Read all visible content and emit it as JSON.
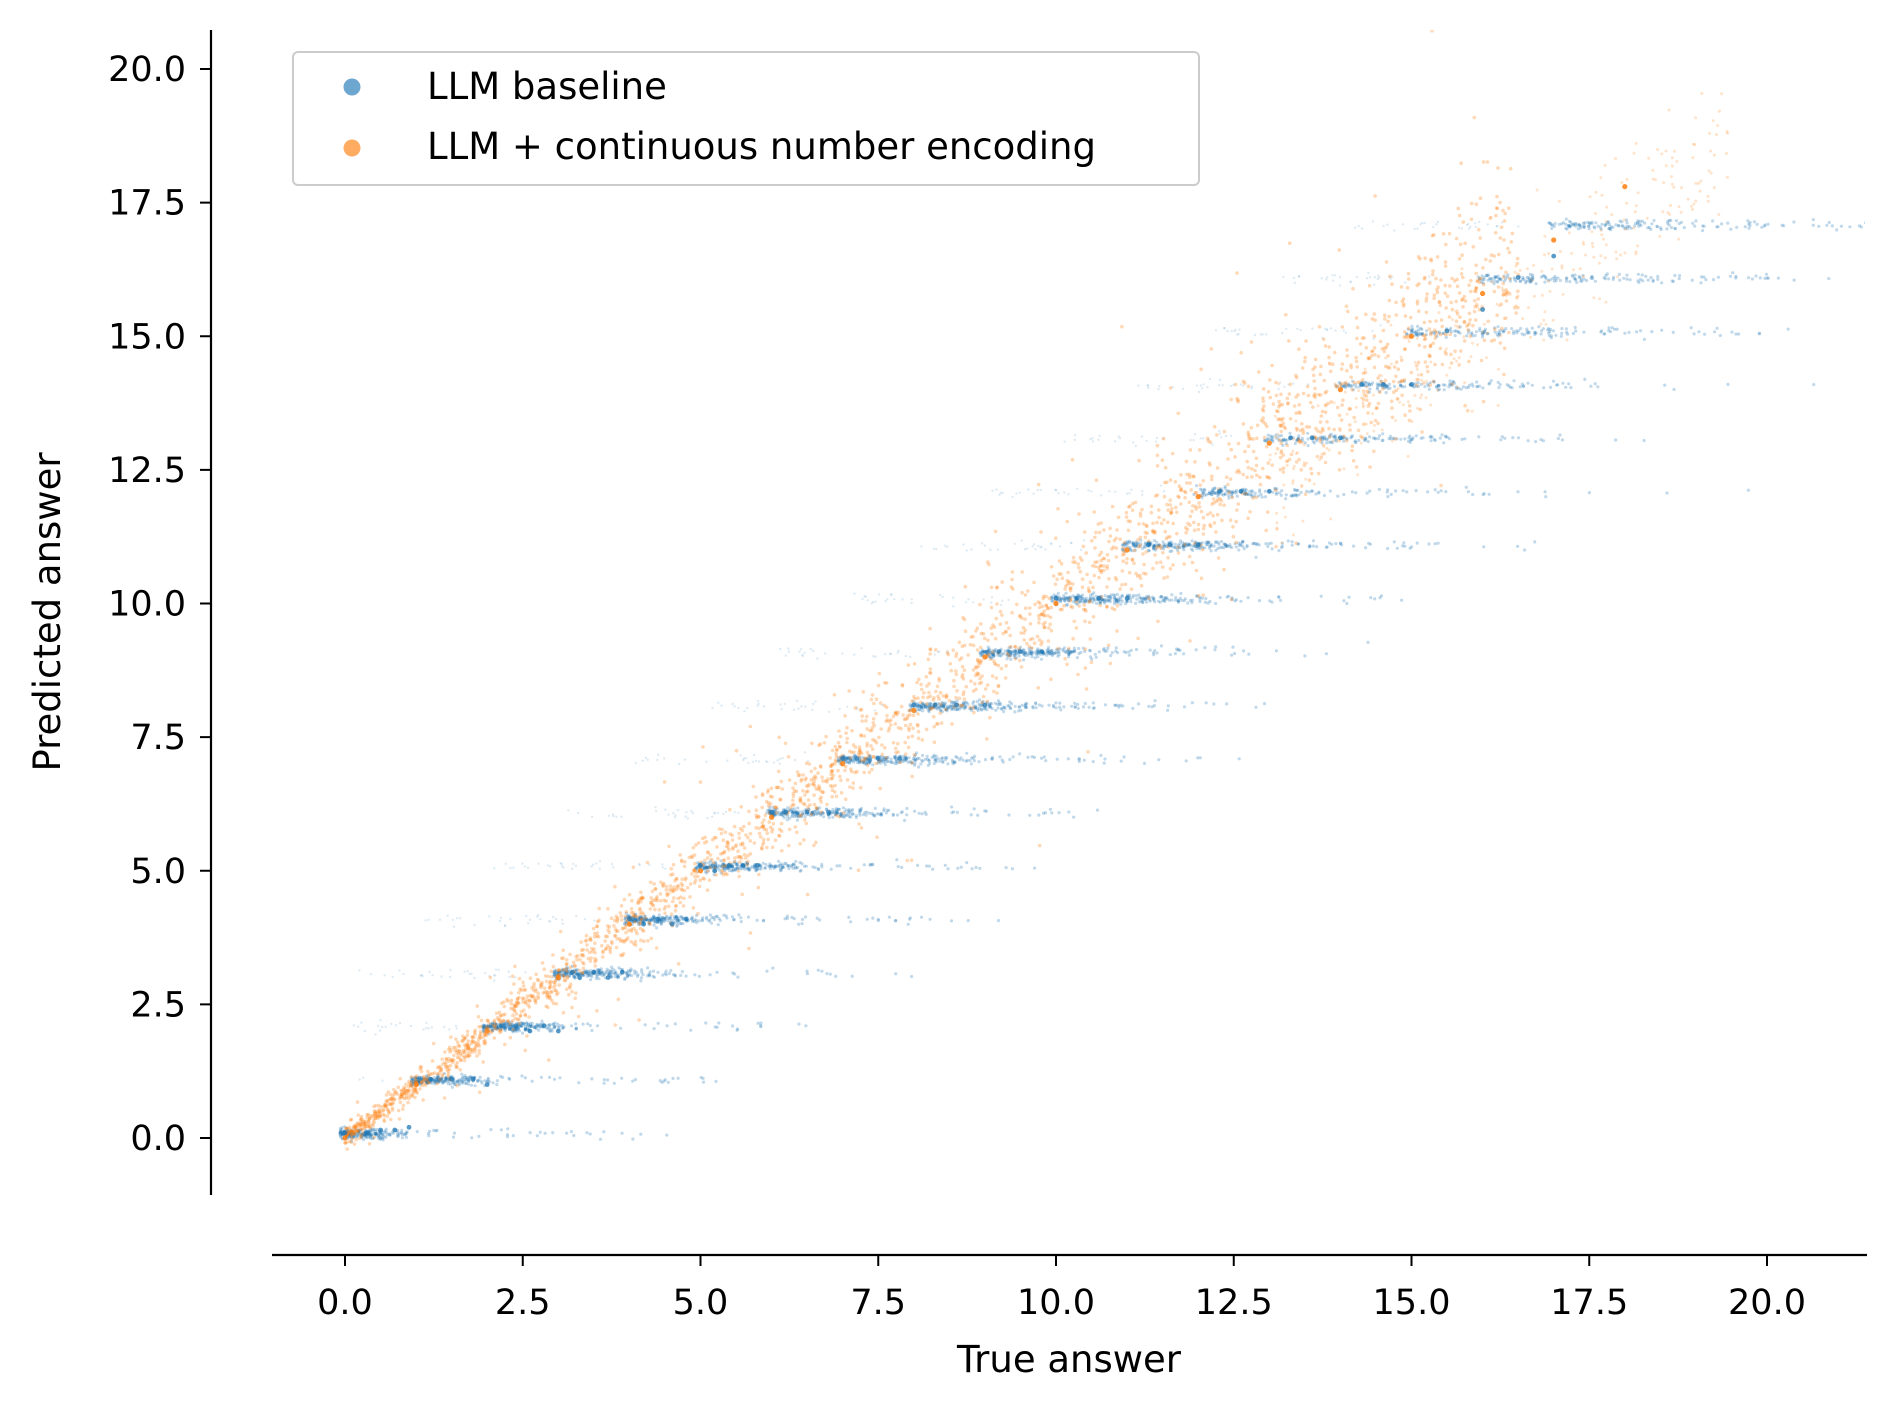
{
  "chart_data": {
    "type": "scatter",
    "title": "",
    "xlabel": "True answer",
    "ylabel": "Predicted answer",
    "xlim": [
      -1.0,
      21.3
    ],
    "ylim": [
      -1.0,
      20.6
    ],
    "xticks": [
      0.0,
      2.5,
      5.0,
      7.5,
      10.0,
      12.5,
      15.0,
      17.5,
      20.0
    ],
    "yticks": [
      0.0,
      2.5,
      5.0,
      7.5,
      10.0,
      12.5,
      15.0,
      17.5,
      20.0
    ],
    "xtick_labels": [
      "0.0",
      "2.5",
      "5.0",
      "7.5",
      "10.0",
      "12.5",
      "15.0",
      "17.5",
      "20.0"
    ],
    "ytick_labels": [
      "0.0",
      "2.5",
      "5.0",
      "7.5",
      "10.0",
      "12.5",
      "15.0",
      "17.5",
      "20.0"
    ],
    "grid": false,
    "legend_position": "top-left",
    "series": [
      {
        "name": "LLM baseline",
        "color": "#1f77b4",
        "pattern": "predictions quantized to horizontal bands near integer levels (0, 1, 2, ..., 17) extending to the right of the y = x diagonal",
        "x": [
          0.0,
          0.3,
          0.5,
          0.7,
          0.9,
          1.2,
          1.5,
          1.8,
          2.0,
          2.2,
          2.4,
          2.6,
          2.8,
          3.0,
          3.2,
          3.3,
          3.5,
          3.7,
          3.9,
          4.0,
          4.2,
          4.4,
          4.6,
          4.8,
          5.0,
          5.2,
          5.4,
          5.6,
          5.8,
          6.0,
          6.2,
          6.5,
          6.8,
          7.0,
          7.2,
          7.5,
          7.8,
          8.0,
          8.3,
          8.6,
          9.0,
          9.2,
          9.5,
          9.8,
          10.0,
          10.3,
          10.6,
          11.0,
          11.3,
          11.6,
          12.0,
          12.3,
          12.6,
          13.0,
          13.3,
          13.6,
          14.0,
          14.3,
          14.6,
          15.0,
          15.5,
          16.0,
          16.5,
          17.0
        ],
        "y": [
          0.1,
          0.1,
          0.15,
          0.15,
          0.2,
          1.1,
          1.1,
          1.1,
          1.0,
          2.1,
          2.1,
          2.0,
          2.1,
          2.0,
          3.1,
          3.0,
          3.1,
          3.0,
          3.1,
          4.1,
          4.0,
          4.1,
          4.0,
          4.1,
          5.1,
          5.0,
          5.1,
          5.1,
          5.1,
          6.1,
          6.1,
          6.1,
          6.1,
          7.1,
          7.1,
          7.1,
          7.1,
          8.1,
          8.1,
          8.1,
          8.1,
          9.1,
          9.1,
          9.1,
          10.1,
          10.1,
          10.1,
          10.1,
          11.1,
          11.1,
          11.1,
          12.1,
          12.1,
          12.1,
          13.1,
          13.1,
          13.1,
          14.1,
          14.1,
          14.1,
          15.1,
          15.5,
          16.1,
          16.5
        ]
      },
      {
        "name": "LLM + continuous number encoding",
        "color": "#ff7f0e",
        "pattern": "predictions tightly along the y = x diagonal with spread growing at larger values",
        "x": [
          0.0,
          1.0,
          2.0,
          3.0,
          4.0,
          5.0,
          6.0,
          7.0,
          8.0,
          9.0,
          10.0,
          11.0,
          12.0,
          13.0,
          14.0,
          15.0,
          16.0,
          17.0,
          18.0
        ],
        "y": [
          0.0,
          1.0,
          2.0,
          3.0,
          4.0,
          5.0,
          6.0,
          7.0,
          8.0,
          9.0,
          10.0,
          11.0,
          12.0,
          13.0,
          14.0,
          15.0,
          15.8,
          16.8,
          17.8
        ]
      }
    ]
  }
}
